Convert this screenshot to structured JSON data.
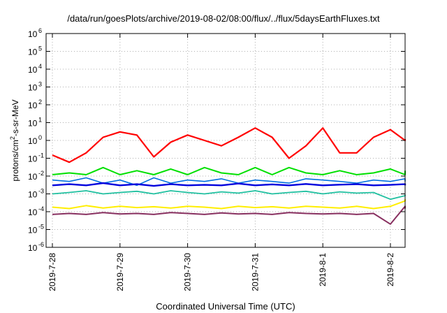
{
  "chart_data": {
    "type": "line",
    "title": "/data/run/goesPlots/archive/2019-08-02/08:00/flux/../flux/5daysEarthFluxes.txt",
    "xlabel": "Coordinated Universal Time (UTC)",
    "ylabel": "protons/cm²-s-sr-MeV",
    "yscale": "log",
    "ylim": [
      1e-06,
      1000000.0
    ],
    "xlim": [
      "2019-7-28",
      "2019-8-2"
    ],
    "x_ticks": [
      "2019-7-28",
      "2019-7-29",
      "2019-7-30",
      "2019-7-31",
      "2019-8-1",
      "2019-8-2"
    ],
    "y_ticks": [
      {
        "base": "10",
        "exp": "-6"
      },
      {
        "base": "10",
        "exp": "-5"
      },
      {
        "base": "10",
        "exp": "-4"
      },
      {
        "base": "10",
        "exp": "-3"
      },
      {
        "base": "10",
        "exp": "-2"
      },
      {
        "base": "10",
        "exp": "-1"
      },
      {
        "base": "10",
        "exp": "0"
      },
      {
        "base": "10",
        "exp": "1"
      },
      {
        "base": "10",
        "exp": "2"
      },
      {
        "base": "10",
        "exp": "3"
      },
      {
        "base": "10",
        "exp": "4"
      },
      {
        "base": "10",
        "exp": "5"
      },
      {
        "base": "10",
        "exp": "6"
      }
    ],
    "grid": true,
    "x": [
      "2019-7-28 00:00",
      "2019-7-28 06:00",
      "2019-7-28 12:00",
      "2019-7-28 18:00",
      "2019-7-29 00:00",
      "2019-7-29 06:00",
      "2019-7-29 12:00",
      "2019-7-29 18:00",
      "2019-7-30 00:00",
      "2019-7-30 06:00",
      "2019-7-30 12:00",
      "2019-7-30 18:00",
      "2019-7-31 00:00",
      "2019-7-31 06:00",
      "2019-7-31 12:00",
      "2019-7-31 18:00",
      "2019-8-1 00:00",
      "2019-8-1 06:00",
      "2019-8-1 12:00",
      "2019-8-1 18:00",
      "2019-8-2 00:00",
      "2019-8-2 06:00",
      "2019-8-2 09:00"
    ],
    "series": [
      {
        "color": "#ff0000",
        "width": 2.2,
        "values": [
          0.15,
          0.06,
          0.2,
          1.5,
          3.0,
          2.0,
          0.12,
          0.8,
          2.0,
          1.0,
          0.5,
          1.5,
          5.0,
          1.5,
          0.1,
          0.5,
          5.0,
          0.2,
          0.2,
          1.5,
          4.0,
          1.0,
          1.2
        ]
      },
      {
        "color": "#00e000",
        "width": 2.0,
        "values": [
          0.012,
          0.015,
          0.012,
          0.03,
          0.012,
          0.02,
          0.012,
          0.025,
          0.012,
          0.03,
          0.015,
          0.012,
          0.03,
          0.012,
          0.03,
          0.015,
          0.012,
          0.02,
          0.012,
          0.015,
          0.025,
          0.012,
          0.02
        ]
      },
      {
        "color": "#0070e0",
        "width": 1.6,
        "values": [
          0.006,
          0.005,
          0.008,
          0.004,
          0.006,
          0.003,
          0.008,
          0.004,
          0.006,
          0.005,
          0.007,
          0.004,
          0.006,
          0.005,
          0.004,
          0.007,
          0.006,
          0.005,
          0.004,
          0.006,
          0.005,
          0.007,
          0.005
        ]
      },
      {
        "color": "#0000dd",
        "width": 2.4,
        "values": [
          0.003,
          0.0035,
          0.003,
          0.004,
          0.003,
          0.0035,
          0.0028,
          0.0035,
          0.003,
          0.0032,
          0.003,
          0.0038,
          0.003,
          0.0034,
          0.003,
          0.0036,
          0.003,
          0.0033,
          0.0035,
          0.003,
          0.0032,
          0.0035,
          0.003
        ]
      },
      {
        "color": "#20c0a0",
        "width": 1.8,
        "values": [
          0.001,
          0.0012,
          0.0015,
          0.001,
          0.0012,
          0.0014,
          0.001,
          0.0015,
          0.0012,
          0.001,
          0.0013,
          0.0011,
          0.0015,
          0.001,
          0.0012,
          0.0014,
          0.001,
          0.0013,
          0.0011,
          0.0012,
          0.0005,
          0.0008,
          0.0009
        ]
      },
      {
        "color": "#ffee00",
        "width": 2.0,
        "values": [
          0.00018,
          0.00015,
          0.00022,
          0.00016,
          0.0002,
          0.00017,
          0.00019,
          0.00016,
          0.0002,
          0.00018,
          0.00015,
          0.0002,
          0.00017,
          0.00019,
          0.00016,
          0.0002,
          0.00018,
          0.00016,
          0.0002,
          0.00015,
          0.0002,
          0.0004,
          0.0005
        ]
      },
      {
        "color": "#883060",
        "width": 2.0,
        "values": [
          7e-05,
          8e-05,
          7e-05,
          9e-05,
          7.5e-05,
          8e-05,
          7e-05,
          9e-05,
          8e-05,
          7e-05,
          8.5e-05,
          7.5e-05,
          8e-05,
          7e-05,
          9e-05,
          8e-05,
          7.5e-05,
          8e-05,
          7e-05,
          8e-05,
          2e-05,
          0.0002,
          0.00015
        ]
      }
    ]
  }
}
